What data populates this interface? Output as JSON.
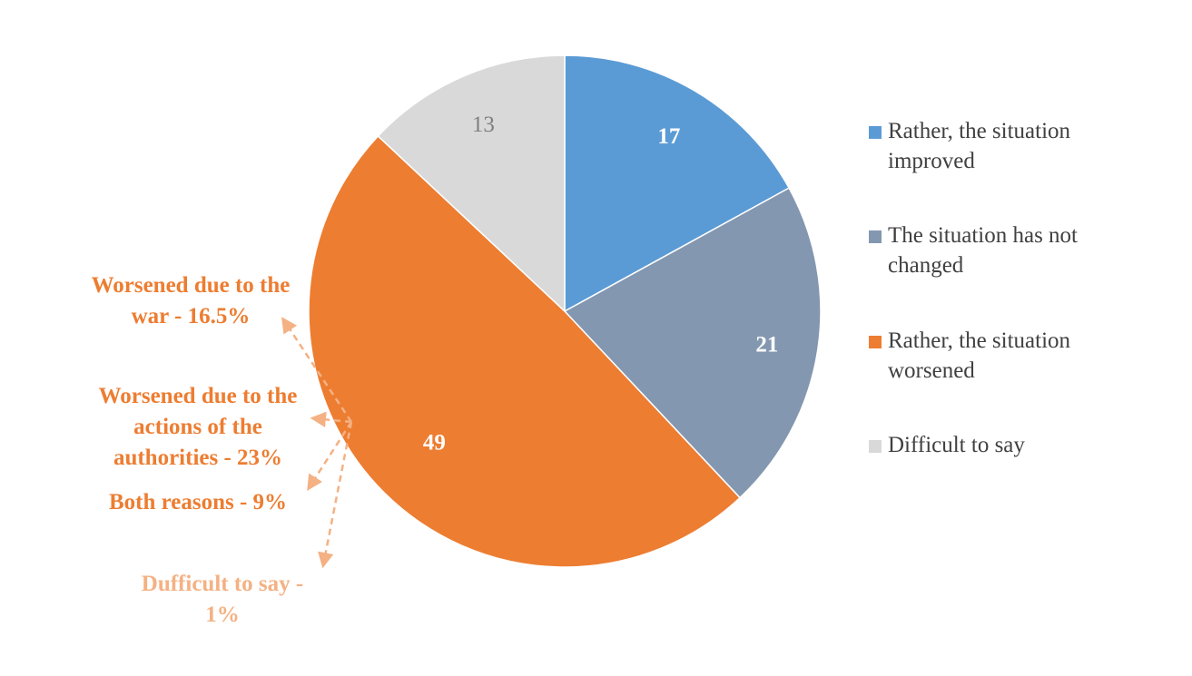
{
  "chart_data": {
    "type": "pie",
    "series": [
      {
        "label": "Rather, the situation improved",
        "value": 17,
        "color": "#5b9bd5",
        "label_color": "#ffffff"
      },
      {
        "label": "The situation has not changed",
        "value": 21,
        "color": "#8497b0",
        "label_color": "#ffffff"
      },
      {
        "label": "Rather, the situation worsened",
        "value": 49,
        "color": "#ed7d31",
        "label_color": "#ffffff"
      },
      {
        "label": "Difficult to say",
        "value": 13,
        "color": "#d9d9d9",
        "label_color": "#7f7f7f"
      }
    ],
    "legend_position": "right",
    "annotations": [
      {
        "text_line1": "Worsened due to the",
        "text_line2": "war - 16.5%"
      },
      {
        "text_line1": "Worsened due to the",
        "text_line2": "actions of the",
        "text_line3": "authorities - 23%"
      },
      {
        "text_line1": "Both reasons - 9%"
      },
      {
        "text_line1": "Dufficult to say -",
        "text_line2": "1%"
      }
    ],
    "annotation_colors": {
      "main": "#ed7d31",
      "light": "#f4b183"
    }
  }
}
